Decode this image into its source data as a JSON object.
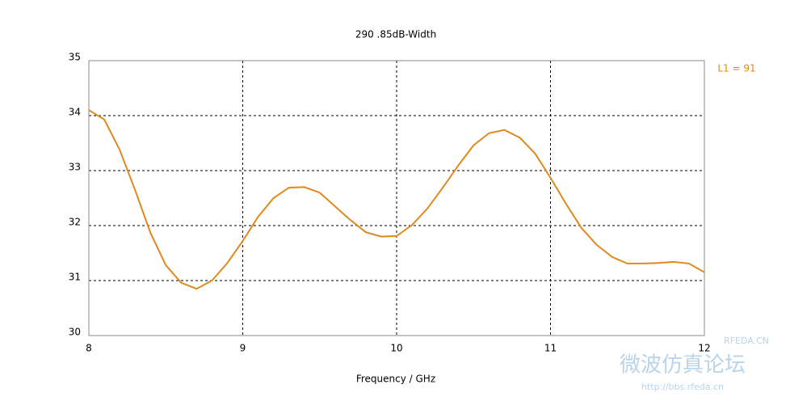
{
  "chart_data": {
    "type": "line",
    "title": "290  .85dB-Width",
    "x_label": "Frequency / GHz",
    "x": [
      8.0,
      8.1,
      8.2,
      8.3,
      8.4,
      8.5,
      8.6,
      8.7,
      8.8,
      8.9,
      9.0,
      9.1,
      9.2,
      9.3,
      9.4,
      9.5,
      9.6,
      9.7,
      9.8,
      9.9,
      10.0,
      10.1,
      10.2,
      10.3,
      10.4,
      10.5,
      10.6,
      10.7,
      10.8,
      10.9,
      11.0,
      11.1,
      11.2,
      11.3,
      11.4,
      11.5,
      11.6,
      11.7,
      11.8,
      11.9,
      12.0
    ],
    "series": [
      {
        "name": "L1 = 91",
        "color": "#e0891e",
        "values": [
          34.1,
          33.93,
          33.38,
          32.65,
          31.87,
          31.28,
          30.96,
          30.85,
          31.0,
          31.32,
          31.72,
          32.16,
          32.5,
          32.69,
          32.7,
          32.6,
          32.35,
          32.1,
          31.88,
          31.8,
          31.81,
          32.01,
          32.31,
          32.69,
          33.09,
          33.46,
          33.68,
          33.74,
          33.6,
          33.31,
          32.87,
          32.4,
          31.96,
          31.65,
          31.43,
          31.31,
          31.31,
          31.32,
          31.34,
          31.31,
          31.15
        ]
      }
    ],
    "xlim": [
      8,
      12
    ],
    "xticks": [
      8,
      9,
      10,
      11,
      12
    ],
    "ylim": [
      30,
      35
    ],
    "yticks": [
      30,
      31,
      32,
      33,
      34,
      35
    ],
    "grid": true,
    "legend": "right",
    "watermark": [
      "RFEDA.CN",
      "微波仿真论坛",
      "http://bbs.rfeda.cn"
    ]
  }
}
